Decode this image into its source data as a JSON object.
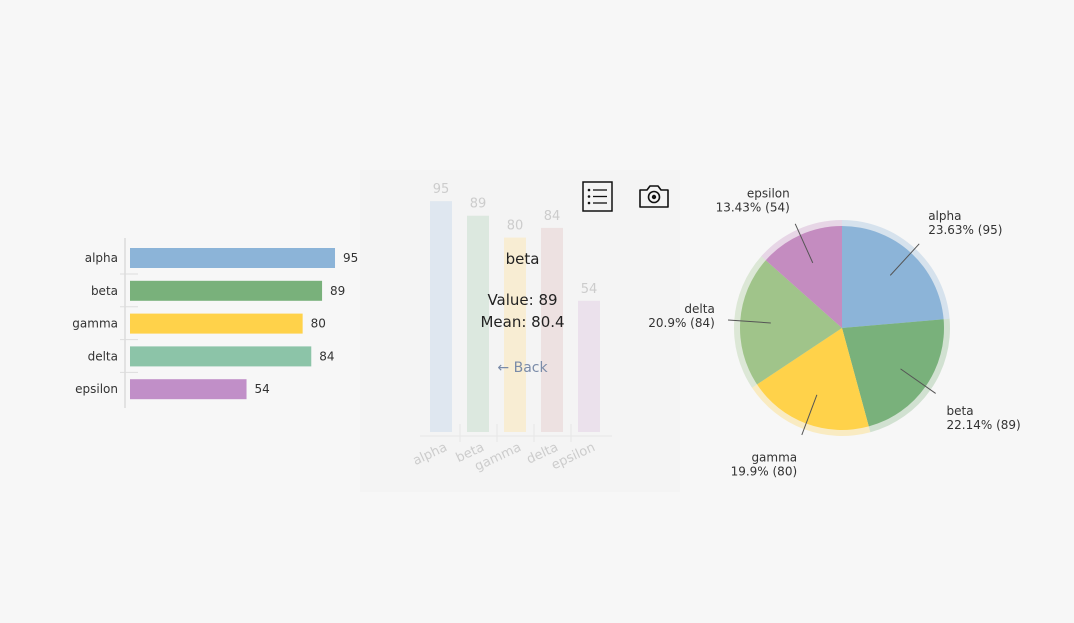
{
  "chart_data": [
    {
      "type": "bar",
      "orientation": "horizontal",
      "categories": [
        "alpha",
        "beta",
        "gamma",
        "delta",
        "epsilon"
      ],
      "values": [
        95,
        89,
        80,
        84,
        54
      ],
      "colors": [
        "#8cb4d8",
        "#79b17b",
        "#ffd24a",
        "#8cc4a8",
        "#c18fc8"
      ]
    },
    {
      "type": "bar",
      "orientation": "vertical",
      "categories": [
        "alpha",
        "beta",
        "gamma",
        "delta",
        "epsilon"
      ],
      "values": [
        95,
        89,
        80,
        84,
        54
      ],
      "colors": [
        "#dfe7f0",
        "#dce8df",
        "#f8edd3",
        "#ede1e1",
        "#ebe1ec"
      ],
      "detail": {
        "title": "beta",
        "value_label": "Value: 89",
        "mean_label": "Mean: 80.4",
        "back_label": "← Back"
      },
      "toolbar": [
        "list-icon",
        "camera-icon"
      ]
    },
    {
      "type": "pie",
      "categories": [
        "alpha",
        "beta",
        "gamma",
        "delta",
        "epsilon"
      ],
      "values": [
        95,
        89,
        80,
        84,
        54
      ],
      "labels": [
        "23.63% (95)",
        "22.14% (89)",
        "19.9% (80)",
        "20.9% (84)",
        "13.43% (54)"
      ],
      "colors": [
        "#8cb4d8",
        "#79b17b",
        "#ffd24a",
        "#a0c48a",
        "#c48cc0"
      ]
    }
  ]
}
